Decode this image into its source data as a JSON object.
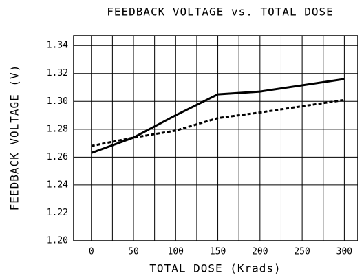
{
  "chart_data": {
    "type": "line",
    "title": "FEEDBACK VOLTAGE vs. TOTAL DOSE",
    "xlabel": "TOTAL DOSE (Krads)",
    "ylabel": "FEEDBACK VOLTAGE (V)",
    "x": [
      0,
      50,
      100,
      150,
      200,
      300
    ],
    "series": [
      {
        "color": "#000000",
        "style": "solid",
        "values": [
          1.263,
          1.274,
          1.29,
          1.305,
          1.307,
          1.316
        ]
      },
      {
        "color": "#000000",
        "style": "dashed",
        "values": [
          1.268,
          1.274,
          1.279,
          1.288,
          1.292,
          1.301
        ]
      }
    ],
    "xlim": [
      -21,
      316
    ],
    "ylim": [
      1.2,
      1.347
    ],
    "xticks": [
      0,
      50,
      100,
      150,
      200,
      250,
      300
    ],
    "xgrid": [
      0,
      25,
      50,
      75,
      100,
      125,
      150,
      175,
      200,
      225,
      250,
      275,
      300
    ],
    "yticks": [
      {
        "value": 1.2,
        "label": "1.20"
      },
      {
        "value": 1.22,
        "label": "1.22"
      },
      {
        "value": 1.24,
        "label": "1.24"
      },
      {
        "value": 1.26,
        "label": "1.26"
      },
      {
        "value": 1.28,
        "label": "1.28"
      },
      {
        "value": 1.3,
        "label": "1.30"
      },
      {
        "value": 1.32,
        "label": "1.32"
      },
      {
        "value": 1.34,
        "label": "1.34"
      }
    ],
    "grid": true
  }
}
